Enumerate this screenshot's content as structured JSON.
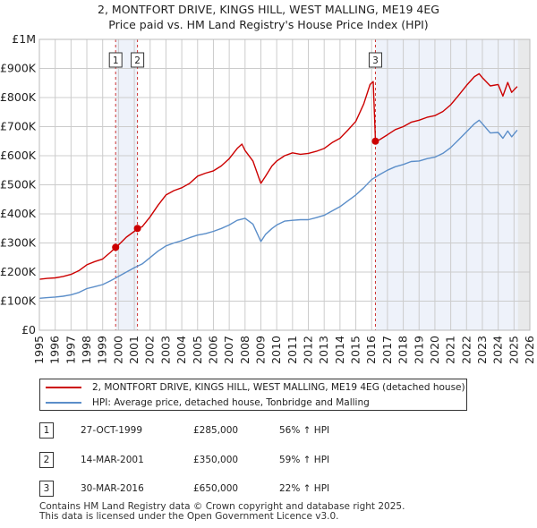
{
  "title_line1": "2, MONTFORT DRIVE, KINGS HILL, WEST MALLING, ME19 4EG",
  "title_line2": "Price paid vs. HM Land Registry's House Price Index (HPI)",
  "chart_data": {
    "type": "line",
    "title": "2, MONTFORT DRIVE, KINGS HILL, WEST MALLING, ME19 4EG — Price paid vs. HM Land Registry's House Price Index (HPI)",
    "xlim": [
      1995,
      2026
    ],
    "ylim": [
      0,
      1000000
    ],
    "y_ticks": [
      {
        "v": 0,
        "label": "£0"
      },
      {
        "v": 100000,
        "label": "£100K"
      },
      {
        "v": 200000,
        "label": "£200K"
      },
      {
        "v": 300000,
        "label": "£300K"
      },
      {
        "v": 400000,
        "label": "£400K"
      },
      {
        "v": 500000,
        "label": "£500K"
      },
      {
        "v": 600000,
        "label": "£600K"
      },
      {
        "v": 700000,
        "label": "£700K"
      },
      {
        "v": 800000,
        "label": "£800K"
      },
      {
        "v": 900000,
        "label": "£900K"
      },
      {
        "v": 1000000,
        "label": "£1M"
      }
    ],
    "x_ticks": [
      "1995",
      "1996",
      "1997",
      "1998",
      "1999",
      "2000",
      "2001",
      "2002",
      "2003",
      "2004",
      "2005",
      "2006",
      "2007",
      "2008",
      "2009",
      "2010",
      "2011",
      "2012",
      "2013",
      "2014",
      "2015",
      "2016",
      "2017",
      "2018",
      "2019",
      "2020",
      "2021",
      "2022",
      "2023",
      "2024",
      "2025",
      "2026"
    ],
    "grid": true,
    "series": [
      {
        "name": "2, MONTFORT DRIVE, KINGS HILL, WEST MALLING, ME19 4EG (detached house)",
        "color": "#cc0000",
        "points": [
          [
            1995.0,
            175000
          ],
          [
            1995.5,
            178000
          ],
          [
            1996.0,
            180000
          ],
          [
            1996.5,
            185000
          ],
          [
            1997.0,
            192000
          ],
          [
            1997.5,
            205000
          ],
          [
            1998.0,
            225000
          ],
          [
            1998.5,
            236000
          ],
          [
            1999.0,
            245000
          ],
          [
            1999.5,
            268000
          ],
          [
            1999.82,
            285000
          ],
          [
            2000.0,
            293000
          ],
          [
            2000.5,
            320000
          ],
          [
            2001.0,
            340000
          ],
          [
            2001.2,
            350000
          ],
          [
            2001.5,
            356000
          ],
          [
            2002.0,
            390000
          ],
          [
            2002.5,
            430000
          ],
          [
            2003.0,
            465000
          ],
          [
            2003.5,
            480000
          ],
          [
            2004.0,
            490000
          ],
          [
            2004.5,
            505000
          ],
          [
            2005.0,
            530000
          ],
          [
            2005.5,
            540000
          ],
          [
            2006.0,
            548000
          ],
          [
            2006.5,
            565000
          ],
          [
            2007.0,
            590000
          ],
          [
            2007.5,
            625000
          ],
          [
            2007.8,
            640000
          ],
          [
            2008.0,
            618000
          ],
          [
            2008.5,
            582000
          ],
          [
            2008.9,
            520000
          ],
          [
            2009.0,
            505000
          ],
          [
            2009.3,
            530000
          ],
          [
            2009.7,
            565000
          ],
          [
            2010.0,
            582000
          ],
          [
            2010.5,
            600000
          ],
          [
            2011.0,
            610000
          ],
          [
            2011.5,
            605000
          ],
          [
            2012.0,
            608000
          ],
          [
            2012.5,
            615000
          ],
          [
            2013.0,
            625000
          ],
          [
            2013.5,
            645000
          ],
          [
            2014.0,
            660000
          ],
          [
            2014.5,
            688000
          ],
          [
            2015.0,
            718000
          ],
          [
            2015.5,
            778000
          ],
          [
            2015.9,
            845000
          ],
          [
            2016.1,
            855000
          ],
          [
            2016.24,
            650000
          ],
          [
            2016.5,
            655000
          ],
          [
            2017.0,
            672000
          ],
          [
            2017.5,
            690000
          ],
          [
            2018.0,
            700000
          ],
          [
            2018.5,
            715000
          ],
          [
            2019.0,
            722000
          ],
          [
            2019.5,
            732000
          ],
          [
            2020.0,
            738000
          ],
          [
            2020.5,
            752000
          ],
          [
            2021.0,
            775000
          ],
          [
            2021.5,
            808000
          ],
          [
            2022.0,
            842000
          ],
          [
            2022.5,
            872000
          ],
          [
            2022.8,
            882000
          ],
          [
            2023.0,
            868000
          ],
          [
            2023.5,
            840000
          ],
          [
            2024.0,
            845000
          ],
          [
            2024.3,
            805000
          ],
          [
            2024.6,
            852000
          ],
          [
            2024.85,
            818000
          ],
          [
            2025.2,
            838000
          ]
        ]
      },
      {
        "name": "HPI: Average price, detached house, Tonbridge and Malling",
        "color": "#5b8ec9",
        "points": [
          [
            1995.0,
            110000
          ],
          [
            1995.5,
            112000
          ],
          [
            1996.0,
            114000
          ],
          [
            1996.5,
            117000
          ],
          [
            1997.0,
            122000
          ],
          [
            1997.5,
            130000
          ],
          [
            1998.0,
            143000
          ],
          [
            1998.5,
            150000
          ],
          [
            1999.0,
            157000
          ],
          [
            1999.5,
            170000
          ],
          [
            2000.0,
            185000
          ],
          [
            2000.5,
            200000
          ],
          [
            2001.0,
            215000
          ],
          [
            2001.5,
            228000
          ],
          [
            2002.0,
            250000
          ],
          [
            2002.5,
            272000
          ],
          [
            2003.0,
            290000
          ],
          [
            2003.5,
            300000
          ],
          [
            2004.0,
            308000
          ],
          [
            2004.5,
            318000
          ],
          [
            2005.0,
            327000
          ],
          [
            2005.5,
            332000
          ],
          [
            2006.0,
            340000
          ],
          [
            2006.5,
            350000
          ],
          [
            2007.0,
            362000
          ],
          [
            2007.5,
            378000
          ],
          [
            2008.0,
            385000
          ],
          [
            2008.5,
            365000
          ],
          [
            2009.0,
            305000
          ],
          [
            2009.3,
            330000
          ],
          [
            2009.7,
            350000
          ],
          [
            2010.0,
            362000
          ],
          [
            2010.5,
            375000
          ],
          [
            2011.0,
            378000
          ],
          [
            2011.5,
            380000
          ],
          [
            2012.0,
            380000
          ],
          [
            2012.5,
            387000
          ],
          [
            2013.0,
            395000
          ],
          [
            2013.5,
            410000
          ],
          [
            2014.0,
            425000
          ],
          [
            2014.5,
            445000
          ],
          [
            2015.0,
            465000
          ],
          [
            2015.5,
            490000
          ],
          [
            2016.0,
            518000
          ],
          [
            2016.5,
            535000
          ],
          [
            2017.0,
            550000
          ],
          [
            2017.5,
            562000
          ],
          [
            2018.0,
            570000
          ],
          [
            2018.5,
            580000
          ],
          [
            2019.0,
            582000
          ],
          [
            2019.5,
            590000
          ],
          [
            2020.0,
            595000
          ],
          [
            2020.5,
            608000
          ],
          [
            2021.0,
            628000
          ],
          [
            2021.5,
            655000
          ],
          [
            2022.0,
            682000
          ],
          [
            2022.5,
            710000
          ],
          [
            2022.8,
            722000
          ],
          [
            2023.0,
            710000
          ],
          [
            2023.5,
            678000
          ],
          [
            2024.0,
            680000
          ],
          [
            2024.3,
            660000
          ],
          [
            2024.6,
            685000
          ],
          [
            2024.85,
            665000
          ],
          [
            2025.2,
            688000
          ]
        ]
      }
    ],
    "sales": [
      {
        "num": "1",
        "x": 1999.82,
        "y": 285000
      },
      {
        "num": "2",
        "x": 2001.2,
        "y": 350000
      },
      {
        "num": "3",
        "x": 2016.24,
        "y": 650000
      }
    ],
    "shaded_periods": [
      [
        1999.82,
        2001.2
      ],
      [
        2016.24,
        2026
      ],
      [
        2025.25,
        2026
      ]
    ]
  },
  "legend": {
    "property_label": "2, MONTFORT DRIVE, KINGS HILL, WEST MALLING, ME19 4EG (detached house)",
    "hpi_label": "HPI: Average price, detached house, Tonbridge and Malling",
    "property_color": "#cc0000",
    "hpi_color": "#5b8ec9"
  },
  "sales_table": [
    {
      "num": "1",
      "date": "27-OCT-1999",
      "price": "£285,000",
      "hpi": "56% ↑ HPI"
    },
    {
      "num": "2",
      "date": "14-MAR-2001",
      "price": "£350,000",
      "hpi": "59% ↑ HPI"
    },
    {
      "num": "3",
      "date": "30-MAR-2016",
      "price": "£650,000",
      "hpi": "22% ↑ HPI"
    }
  ],
  "footer_line1": "Contains HM Land Registry data © Crown copyright and database right 2025.",
  "footer_line2": "This data is licensed under the Open Government Licence v3.0."
}
